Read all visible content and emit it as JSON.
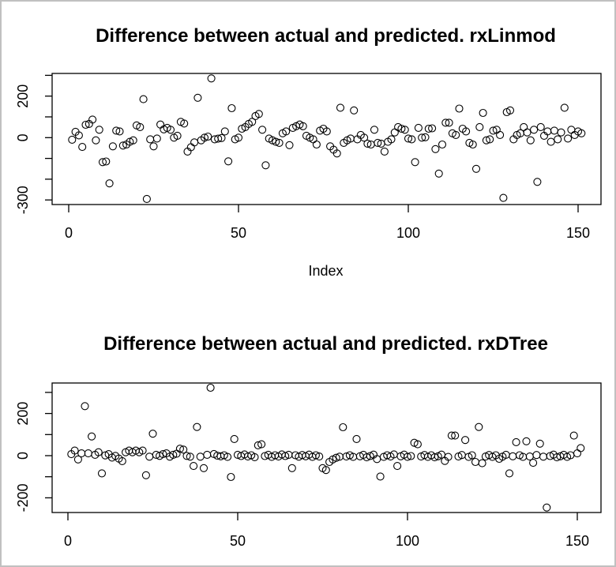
{
  "window": {
    "background": "#ffffff",
    "border_color": "#c0c0c0",
    "axis_color": "#000000",
    "point_color": "#000000"
  },
  "chart_data": [
    {
      "type": "scatter",
      "title": "Difference between actual and predicted. rxLinmod",
      "xlabel": "Index",
      "ylabel": "",
      "x_description": "observation index 1..151 (points plotted against index)",
      "n_points": 151,
      "xlim": [
        -5,
        157
      ],
      "ylim": [
        -320,
        310
      ],
      "xticks": [
        0,
        50,
        100,
        150
      ],
      "yticks": [
        300,
        200,
        100,
        0,
        -100,
        -200,
        -300
      ],
      "ytick_labels": [
        "",
        "200",
        "",
        "0",
        "",
        "",
        "-300"
      ],
      "grid": false,
      "legend": null,
      "marker": "open-circle",
      "y_values": [
        -10,
        28,
        11,
        -45,
        62,
        66,
        87,
        -13,
        38,
        -118,
        -115,
        -220,
        -42,
        34,
        30,
        -38,
        -33,
        -20,
        -13,
        59,
        51,
        185,
        -295,
        -8,
        -42,
        -4,
        63,
        40,
        47,
        38,
        0,
        9,
        76,
        68,
        -67,
        -46,
        -23,
        192,
        -13,
        0,
        5,
        285,
        -8,
        -5,
        -2,
        30,
        -114,
        142,
        -8,
        0,
        43,
        51,
        66,
        76,
        104,
        114,
        38,
        -133,
        -4,
        -13,
        -20,
        -25,
        21,
        30,
        -36,
        47,
        55,
        63,
        55,
        9,
        0,
        -8,
        -33,
        34,
        43,
        30,
        -42,
        -58,
        -76,
        144,
        -25,
        -13,
        -4,
        131,
        -8,
        13,
        0,
        -29,
        -33,
        38,
        -25,
        -29,
        -67,
        -20,
        -8,
        25,
        51,
        43,
        38,
        -4,
        -8,
        -118,
        47,
        0,
        2,
        43,
        45,
        -55,
        -173,
        -33,
        72,
        72,
        21,
        13,
        140,
        43,
        30,
        -25,
        -33,
        -150,
        51,
        119,
        -13,
        -8,
        34,
        38,
        13,
        -290,
        123,
        131,
        -8,
        13,
        21,
        51,
        25,
        -13,
        38,
        -213,
        51,
        9,
        30,
        -20,
        34,
        -8,
        25,
        144,
        -4,
        38,
        13,
        30,
        21
      ]
    },
    {
      "type": "scatter",
      "title": "Difference between actual and predicted. rxDTree",
      "xlabel": "",
      "ylabel": "",
      "x_description": "observation index 1..151 (points plotted against index)",
      "n_points": 151,
      "xlim": [
        -5,
        157
      ],
      "ylim": [
        -270,
        347
      ],
      "xticks": [
        0,
        50,
        100,
        150
      ],
      "yticks": [
        300,
        200,
        100,
        0,
        -100,
        -200
      ],
      "ytick_labels": [
        "",
        "200",
        "",
        "0",
        "",
        "-200"
      ],
      "grid": false,
      "legend": null,
      "marker": "open-circle",
      "y_values": [
        7,
        24,
        -18,
        11,
        235,
        11,
        91,
        4,
        16,
        -84,
        1,
        7,
        -9,
        -1,
        -14,
        -26,
        16,
        24,
        16,
        24,
        16,
        24,
        -93,
        -5,
        104,
        4,
        -1,
        7,
        11,
        -5,
        4,
        9,
        33,
        29,
        -1,
        -5,
        -49,
        136,
        -5,
        -59,
        4,
        322,
        8,
        0,
        -3,
        2,
        -6,
        -101,
        79,
        4,
        -2,
        6,
        -4,
        2,
        -7,
        49,
        54,
        -2,
        4,
        -6,
        2,
        -4,
        6,
        -2,
        4,
        -59,
        2,
        -5,
        3,
        -3,
        5,
        -6,
        2,
        -4,
        -59,
        -68,
        -30,
        -18,
        -10,
        -5,
        135,
        -4,
        2,
        -6,
        79,
        -3,
        4,
        -8,
        -2,
        5,
        -16,
        -99,
        -6,
        2,
        -4,
        6,
        -49,
        -3,
        5,
        -6,
        -2,
        61,
        54,
        -4,
        3,
        -6,
        2,
        -8,
        -3,
        5,
        -25,
        -6,
        95,
        95,
        -4,
        3,
        74,
        -6,
        2,
        -30,
        136,
        -36,
        -4,
        3,
        -6,
        2,
        -15,
        -5,
        4,
        -84,
        -3,
        64,
        2,
        -6,
        68,
        -4,
        -34,
        3,
        57,
        -5,
        -246,
        -2,
        5,
        -8,
        -3,
        4,
        -6,
        2,
        95,
        11,
        36
      ]
    }
  ]
}
